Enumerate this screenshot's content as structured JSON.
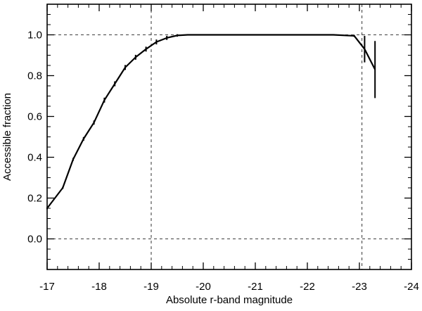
{
  "chart_data": {
    "type": "line",
    "title": "",
    "xlabel": "Absolute r-band magnitude",
    "ylabel": "Accessible fraction",
    "xlim": [
      -17,
      -24
    ],
    "ylim": [
      -0.15,
      1.15
    ],
    "x_ticks": [
      -17,
      -18,
      -19,
      -20,
      -21,
      -22,
      -23,
      -24
    ],
    "x_tick_labels": [
      "-17",
      "-18",
      "-19",
      "-20",
      "-21",
      "-22",
      "-23",
      "-24"
    ],
    "y_ticks": [
      0.0,
      0.2,
      0.4,
      0.6,
      0.8,
      1.0
    ],
    "y_tick_labels": [
      "0.0",
      "0.2",
      "0.4",
      "0.6",
      "0.8",
      "1.0"
    ],
    "reference_lines": {
      "horizontal": [
        0.0,
        1.0
      ],
      "vertical": [
        -19.0,
        -23.05
      ]
    },
    "series": [
      {
        "x": [
          -17.0,
          -17.3,
          -17.5,
          -17.7,
          -17.9,
          -18.1,
          -18.3,
          -18.5,
          -18.7,
          -18.9,
          -19.1,
          -19.3,
          -19.5,
          -19.7,
          -20.0,
          -20.5,
          -21.0,
          -21.5,
          -22.0,
          -22.5,
          -22.9,
          -23.1,
          -23.3
        ],
        "y": [
          0.15,
          0.25,
          0.39,
          0.49,
          0.57,
          0.68,
          0.76,
          0.84,
          0.89,
          0.93,
          0.965,
          0.985,
          0.997,
          1.0,
          1.0,
          1.0,
          1.0,
          1.0,
          1.0,
          1.0,
          0.995,
          0.93,
          0.83
        ],
        "yerr": [
          0.005,
          0.005,
          0.007,
          0.009,
          0.01,
          0.012,
          0.012,
          0.012,
          0.012,
          0.012,
          0.012,
          0.01,
          0.006,
          0.003,
          0.0,
          0.0,
          0.0,
          0.0,
          0.0,
          0.0,
          0.005,
          0.065,
          0.14
        ]
      }
    ],
    "grid": false
  }
}
